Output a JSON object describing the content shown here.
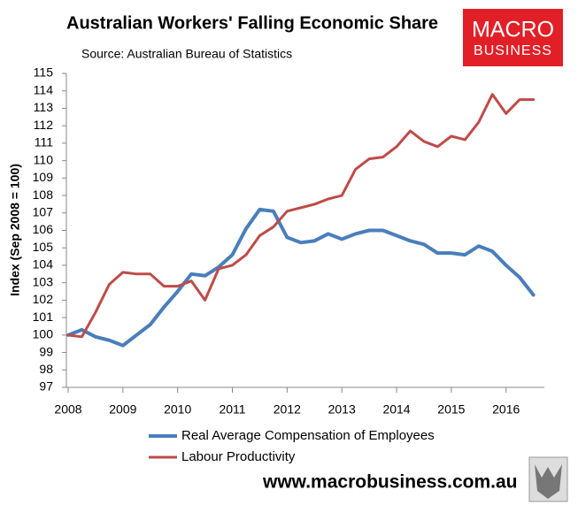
{
  "chart_data": {
    "type": "line",
    "title": "Australian Workers' Falling Economic Share",
    "subtitle": "Source: Australian Bureau of Statistics",
    "y_label": "Index (Sep 2008 = 100)",
    "x": [
      2008,
      2008.25,
      2008.5,
      2008.75,
      2009,
      2009.25,
      2009.5,
      2009.75,
      2010,
      2010.25,
      2010.5,
      2010.75,
      2011,
      2011.25,
      2011.5,
      2011.75,
      2012,
      2012.25,
      2012.5,
      2012.75,
      2013,
      2013.25,
      2013.5,
      2013.75,
      2014,
      2014.25,
      2014.5,
      2014.75,
      2015,
      2015.25,
      2015.5,
      2015.75,
      2016,
      2016.25,
      2016.5
    ],
    "series": [
      {
        "name": "Real Average Compensation of Employees",
        "color": "#4a7ebb",
        "width": 4,
        "values": [
          100,
          100.3,
          99.9,
          99.7,
          99.4,
          100.0,
          100.6,
          101.6,
          102.5,
          103.5,
          103.4,
          103.9,
          104.6,
          106.1,
          107.2,
          107.1,
          105.6,
          105.3,
          105.4,
          105.8,
          105.5,
          105.8,
          106.0,
          106.0,
          105.7,
          105.4,
          105.2,
          104.7,
          104.7,
          104.6,
          105.1,
          104.8,
          104.0,
          103.3,
          102.3
        ]
      },
      {
        "name": "Labour Productivity",
        "color": "#be4b48",
        "width": 3,
        "values": [
          100,
          99.9,
          101.3,
          102.9,
          103.6,
          103.5,
          103.5,
          102.8,
          102.8,
          103.1,
          102.0,
          103.8,
          104.0,
          104.6,
          105.7,
          106.2,
          107.1,
          107.3,
          107.5,
          107.8,
          108.0,
          109.5,
          110.1,
          110.2,
          110.8,
          111.7,
          111.1,
          110.8,
          111.4,
          111.2,
          112.2,
          113.8,
          112.7,
          113.5,
          113.5
        ]
      }
    ],
    "xlim": [
      2008,
      2016.7
    ],
    "xticks": [
      2008,
      2009,
      2010,
      2011,
      2012,
      2013,
      2014,
      2015,
      2016
    ],
    "ylim": [
      97,
      115
    ],
    "yticks": [
      97,
      98,
      99,
      100,
      101,
      102,
      103,
      104,
      105,
      106,
      107,
      108,
      109,
      110,
      111,
      112,
      113,
      114,
      115
    ],
    "grid": false,
    "legend": "bottom"
  },
  "logo": {
    "line1": "MACRO",
    "line2": "BUSINESS"
  },
  "footer": "www.macrobusiness.com.au"
}
